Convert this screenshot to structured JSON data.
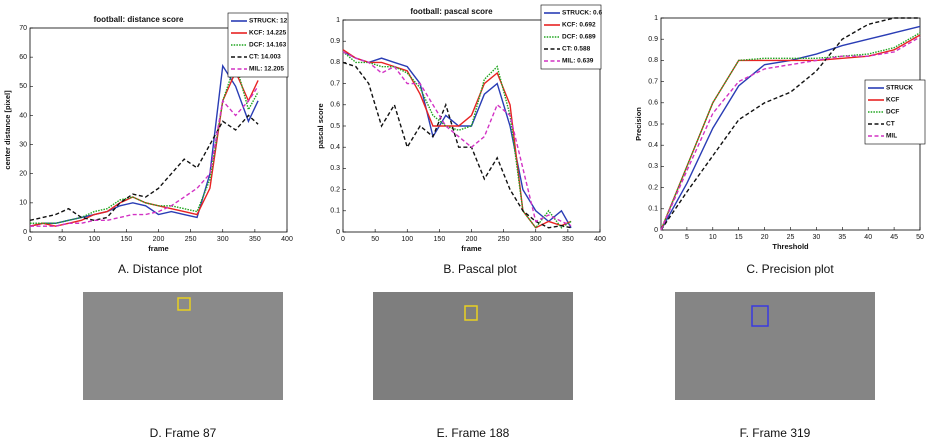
{
  "chart_data": [
    {
      "type": "line",
      "title": "football: distance score",
      "xlabel": "frame",
      "ylabel": "center distance [pixel]",
      "caption": "A. Distance plot",
      "x": [
        0,
        20,
        40,
        60,
        80,
        100,
        120,
        140,
        160,
        180,
        200,
        220,
        240,
        260,
        280,
        300,
        320,
        340,
        355
      ],
      "xlim": [
        0,
        400
      ],
      "xticks": [
        0,
        50,
        100,
        150,
        200,
        250,
        300,
        350,
        400
      ],
      "ylim": [
        0,
        70
      ],
      "yticks": [
        0,
        10,
        20,
        30,
        40,
        50,
        60,
        70
      ],
      "legend": "upper right",
      "series": [
        {
          "name": "STRUCK: 12",
          "color": "#2a3db5",
          "style": "solid",
          "values": [
            2,
            3,
            3,
            4,
            5,
            6,
            7,
            9,
            10,
            9,
            6,
            7,
            6,
            5,
            20,
            57,
            50,
            38,
            45
          ]
        },
        {
          "name": "KCF: 14.225",
          "color": "#e82323",
          "style": "solid",
          "values": [
            2,
            3,
            2,
            3,
            4,
            6,
            7,
            10,
            12,
            10,
            9,
            8,
            7,
            6,
            15,
            45,
            55,
            45,
            52
          ]
        },
        {
          "name": "DCF: 14.163",
          "color": "#1fa51f",
          "style": "dotted",
          "values": [
            3,
            3,
            3,
            4,
            5,
            7,
            8,
            11,
            12,
            10,
            9,
            9,
            8,
            7,
            18,
            45,
            58,
            42,
            48
          ]
        },
        {
          "name": "CT: 14.003",
          "color": "#111111",
          "style": "dashed",
          "values": [
            4,
            5,
            6,
            8,
            5,
            4,
            5,
            10,
            13,
            12,
            15,
            20,
            25,
            22,
            30,
            38,
            35,
            40,
            37
          ]
        },
        {
          "name": "MIL: 12.205",
          "color": "#d232c4",
          "style": "dashed",
          "values": [
            2,
            2,
            2,
            3,
            3,
            4,
            4,
            5,
            6,
            6,
            7,
            9,
            12,
            15,
            20,
            45,
            40,
            45,
            50
          ]
        }
      ]
    },
    {
      "type": "line",
      "title": "football: pascal score",
      "xlabel": "frame",
      "ylabel": "pascal score",
      "caption": "B. Pascal plot",
      "x": [
        0,
        20,
        40,
        60,
        80,
        100,
        120,
        140,
        160,
        180,
        200,
        220,
        240,
        260,
        280,
        300,
        320,
        340,
        355
      ],
      "xlim": [
        0,
        400
      ],
      "xticks": [
        0,
        50,
        100,
        150,
        200,
        250,
        300,
        350,
        400
      ],
      "ylim": [
        0,
        1
      ],
      "yticks": [
        0,
        0.1,
        0.2,
        0.3,
        0.4,
        0.5,
        0.6,
        0.7,
        0.8,
        0.9,
        1
      ],
      "legend": "upper right",
      "series": [
        {
          "name": "STRUCK: 0.6",
          "color": "#2a3db5",
          "style": "solid",
          "values": [
            0.85,
            0.82,
            0.8,
            0.82,
            0.8,
            0.78,
            0.7,
            0.45,
            0.55,
            0.5,
            0.5,
            0.65,
            0.7,
            0.5,
            0.2,
            0.1,
            0.05,
            0.1,
            0.02
          ]
        },
        {
          "name": "KCF: 0.692",
          "color": "#e82323",
          "style": "solid",
          "values": [
            0.86,
            0.82,
            0.8,
            0.8,
            0.78,
            0.76,
            0.65,
            0.5,
            0.5,
            0.5,
            0.55,
            0.7,
            0.75,
            0.6,
            0.1,
            0.02,
            0.05,
            0.03,
            0.05
          ]
        },
        {
          "name": "DCF: 0.689",
          "color": "#1fa51f",
          "style": "dotted",
          "values": [
            0.85,
            0.8,
            0.8,
            0.78,
            0.78,
            0.75,
            0.68,
            0.55,
            0.5,
            0.48,
            0.5,
            0.72,
            0.78,
            0.55,
            0.1,
            0.02,
            0.1,
            0.02,
            0.05
          ]
        },
        {
          "name": "CT: 0.588",
          "color": "#111111",
          "style": "dashed",
          "values": [
            0.8,
            0.78,
            0.7,
            0.5,
            0.6,
            0.4,
            0.5,
            0.45,
            0.6,
            0.4,
            0.4,
            0.25,
            0.35,
            0.2,
            0.1,
            0.05,
            0.02,
            0.03,
            0.02
          ]
        },
        {
          "name": "MIL: 0.639",
          "color": "#d232c4",
          "style": "dashed",
          "values": [
            0.85,
            0.82,
            0.8,
            0.75,
            0.78,
            0.7,
            0.7,
            0.6,
            0.5,
            0.45,
            0.4,
            0.45,
            0.6,
            0.55,
            0.3,
            0.05,
            0.08,
            0.05,
            0.03
          ]
        }
      ]
    },
    {
      "type": "line",
      "xlabel": "Threshold",
      "ylabel": "Precision",
      "caption": "C. Precision plot",
      "x": [
        0,
        5,
        10,
        15,
        20,
        25,
        30,
        35,
        40,
        45,
        50
      ],
      "xlim": [
        0,
        50
      ],
      "xticks": [
        0,
        5,
        10,
        15,
        20,
        25,
        30,
        35,
        40,
        45,
        50
      ],
      "ylim": [
        0,
        1
      ],
      "yticks": [
        0,
        0.1,
        0.2,
        0.3,
        0.4,
        0.5,
        0.6,
        0.7,
        0.8,
        0.9,
        1
      ],
      "legend": "right",
      "series": [
        {
          "name": "STRUCK",
          "color": "#2a3db5",
          "style": "solid",
          "values": [
            0,
            0.22,
            0.48,
            0.68,
            0.78,
            0.8,
            0.83,
            0.87,
            0.9,
            0.93,
            0.96
          ]
        },
        {
          "name": "KCF",
          "color": "#e82323",
          "style": "solid",
          "values": [
            0,
            0.3,
            0.6,
            0.8,
            0.8,
            0.8,
            0.8,
            0.81,
            0.82,
            0.85,
            0.92
          ]
        },
        {
          "name": "DCF",
          "color": "#1fa51f",
          "style": "dotted",
          "values": [
            0,
            0.3,
            0.6,
            0.8,
            0.81,
            0.81,
            0.81,
            0.82,
            0.83,
            0.86,
            0.93
          ]
        },
        {
          "name": "CT",
          "color": "#111111",
          "style": "dashed",
          "values": [
            0,
            0.18,
            0.35,
            0.52,
            0.6,
            0.65,
            0.75,
            0.9,
            0.97,
            1,
            1
          ]
        },
        {
          "name": "MIL",
          "color": "#d232c4",
          "style": "dashed",
          "values": [
            0,
            0.28,
            0.55,
            0.7,
            0.76,
            0.78,
            0.8,
            0.82,
            0.82,
            0.84,
            0.91
          ]
        }
      ]
    }
  ],
  "images": [
    {
      "caption": "D. Frame 87"
    },
    {
      "caption": "E. Frame 188"
    },
    {
      "caption": "F. Frame 319"
    }
  ]
}
